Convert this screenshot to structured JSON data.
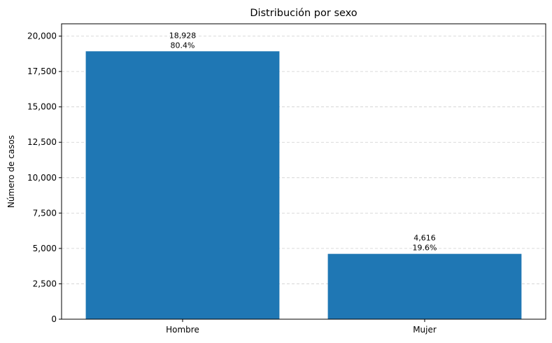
{
  "chart_data": {
    "type": "bar",
    "title": "Distribución por sexo",
    "xlabel": "",
    "ylabel": "Número de casos",
    "categories": [
      "Hombre",
      "Mujer"
    ],
    "values": [
      18928,
      4616
    ],
    "value_labels": [
      "18,928",
      "4,616"
    ],
    "percent_labels": [
      "80.4%",
      "19.6%"
    ],
    "ylim": [
      0,
      20870
    ],
    "yticks": [
      0,
      2500,
      5000,
      7500,
      10000,
      12500,
      15000,
      17500,
      20000
    ],
    "ytick_labels": [
      "0",
      "2,500",
      "5,000",
      "7,500",
      "10,000",
      "12,500",
      "15,000",
      "17,500",
      "20,000"
    ],
    "grid": "y",
    "bar_color": "#1f77b4"
  }
}
